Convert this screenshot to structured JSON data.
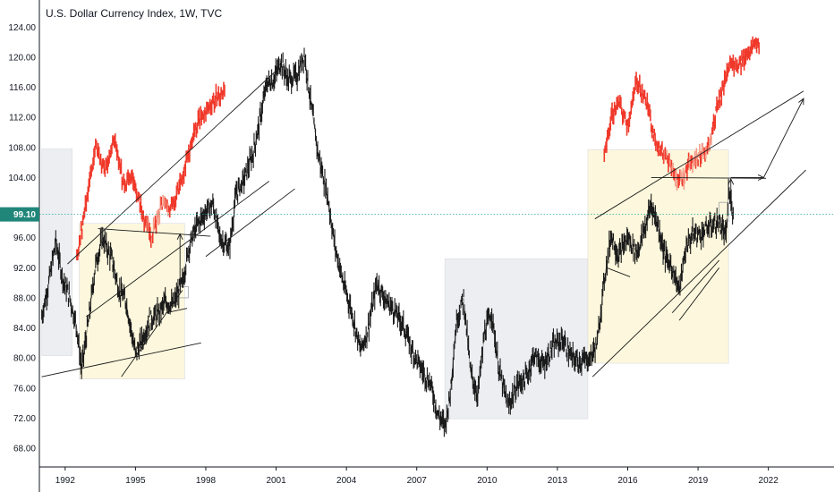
{
  "title": "U.S. Dollar Currency Index, 1W, TVC",
  "colors": {
    "price": "#1a1a1a",
    "overlay": "#f0392b",
    "overlay_light": "#f4a08e",
    "yellow_zone": "#fdf8dd",
    "grey_zone": "#eceef2",
    "current_line": "#26a69a",
    "current_label": "#21867a",
    "trendline": "#1a1a1a"
  },
  "chart_data": {
    "type": "line",
    "title": "U.S. Dollar Currency Index, 1W, TVC",
    "xlabel": "",
    "ylabel": "",
    "xlim": [
      1990.9,
      2024.8
    ],
    "ylim": [
      65.5,
      125
    ],
    "y_ticks": [
      "124.00",
      "120.00",
      "116.00",
      "112.00",
      "108.00",
      "104.00",
      "100.00",
      "96.00",
      "92.00",
      "88.00",
      "84.00",
      "80.00",
      "76.00",
      "72.00",
      "68.00"
    ],
    "x_ticks": [
      "1992",
      "1995",
      "1998",
      "2001",
      "2004",
      "2007",
      "2010",
      "2013",
      "2016",
      "2019",
      "2022"
    ],
    "current_value": "99.10",
    "series": [
      {
        "role": "price",
        "x": [
          1991.0,
          1991.3,
          1991.6,
          1991.9,
          1992.2,
          1992.5,
          1992.7,
          1993.0,
          1993.3,
          1993.6,
          1994.0,
          1994.3,
          1994.6,
          1995.0,
          1995.3,
          1995.6,
          1996.0,
          1996.3,
          1996.6,
          1997.0,
          1997.3,
          1997.6,
          1998.0,
          1998.3,
          1998.6,
          1999.0,
          1999.3,
          1999.6,
          2000.0,
          2000.3,
          2000.6,
          2000.9,
          2001.2,
          2001.5,
          2001.9,
          2002.2,
          2002.5,
          2002.8,
          2003.2,
          2003.5,
          2003.9,
          2004.2,
          2004.6,
          2004.9,
          2005.3,
          2005.7,
          2006.0,
          2006.4,
          2006.8,
          2007.2,
          2007.6,
          2007.9,
          2008.2,
          2008.4,
          2008.7,
          2009.0,
          2009.3,
          2009.6,
          2009.9,
          2010.2,
          2010.5,
          2010.9,
          2011.3,
          2011.7,
          2012.0,
          2012.4,
          2012.8,
          2013.2,
          2013.6,
          2014.0,
          2014.4,
          2014.7,
          2015.0,
          2015.3,
          2015.6,
          2016.0,
          2016.4,
          2016.8,
          2017.0,
          2017.3,
          2017.6,
          2017.9,
          2018.2,
          2018.5,
          2018.8,
          2019.1,
          2019.5,
          2019.9,
          2020.2,
          2020.3,
          2020.5
        ],
        "values": [
          85.5,
          90.0,
          95.5,
          90.5,
          88.0,
          84.0,
          78.5,
          85.0,
          92.5,
          96.0,
          93.0,
          89.0,
          87.5,
          80.5,
          82.5,
          85.0,
          86.0,
          87.5,
          87.0,
          90.0,
          95.0,
          97.5,
          99.5,
          100.5,
          96.0,
          94.5,
          102.0,
          103.5,
          107.0,
          111.5,
          116.5,
          117.0,
          119.5,
          117.0,
          117.5,
          120.5,
          113.5,
          107.0,
          101.5,
          95.0,
          89.5,
          86.5,
          81.0,
          83.5,
          90.0,
          87.5,
          86.5,
          84.5,
          81.0,
          78.5,
          76.5,
          72.5,
          71.0,
          74.5,
          85.0,
          88.0,
          78.0,
          75.0,
          83.5,
          86.0,
          78.5,
          73.5,
          76.5,
          77.5,
          80.5,
          79.0,
          81.5,
          82.5,
          80.0,
          79.5,
          80.0,
          82.0,
          90.5,
          96.5,
          93.5,
          96.0,
          94.0,
          98.0,
          100.5,
          97.5,
          93.5,
          92.0,
          89.0,
          95.0,
          96.5,
          96.5,
          97.5,
          98.0,
          96.0,
          102.0,
          99.5
        ]
      },
      {
        "role": "overlay",
        "x": [
          1992.5,
          1992.9,
          1993.3,
          1993.7,
          1994.1,
          1994.5,
          1994.9,
          1995.3,
          1995.7,
          1996.1,
          1996.5,
          1996.9,
          1997.2,
          1997.6,
          1998.0,
          1998.4,
          1998.8
        ],
        "values": [
          93.5,
          101.0,
          108.0,
          105.0,
          109.5,
          103.0,
          104.0,
          99.0,
          96.0,
          100.5,
          100.0,
          103.0,
          106.5,
          111.0,
          113.0,
          114.5,
          115.5
        ]
      },
      {
        "role": "overlay",
        "x": [
          2015.0,
          2015.3,
          2015.6,
          2016.0,
          2016.4,
          2016.8,
          2017.1,
          2017.4,
          2017.7,
          2018.0,
          2018.3,
          2018.6,
          2018.9,
          2019.2,
          2019.5,
          2019.8,
          2020.1,
          2020.4,
          2020.7,
          2021.0,
          2021.3,
          2021.6
        ],
        "values": [
          107.0,
          112.0,
          114.0,
          111.0,
          117.0,
          114.0,
          110.0,
          107.5,
          106.5,
          104.0,
          103.5,
          105.5,
          106.5,
          107.0,
          108.5,
          113.0,
          116.5,
          119.5,
          118.5,
          120.0,
          121.5,
          122.0
        ]
      }
    ]
  }
}
